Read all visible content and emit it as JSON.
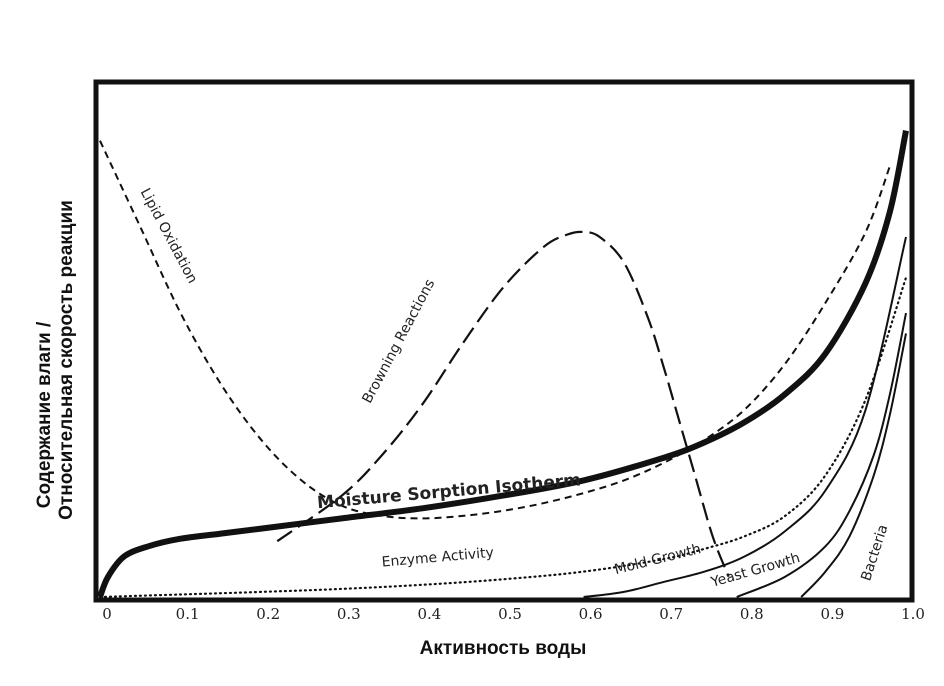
{
  "chart_data": {
    "type": "line",
    "xlabel": "Активность воды",
    "ylabel_lines": [
      "Содержание влаги /",
      "Относительная скорость реакции"
    ],
    "xlim": [
      0,
      1.0
    ],
    "ylim": [
      0,
      1.0
    ],
    "x_ticks": [
      0,
      0.1,
      0.2,
      0.3,
      0.4,
      0.5,
      0.6,
      0.7,
      0.8,
      0.9,
      1.0
    ],
    "x_tick_labels": [
      "0",
      "0.1",
      "0.2",
      "0.3",
      "0.4",
      "0.5",
      "0.6",
      "0.7",
      "0.8",
      "0.9",
      "1.0"
    ],
    "y_ticks_labeled": false,
    "grid": false,
    "legend": "none (curves labeled inline)",
    "series": [
      {
        "name": "Moisture Sorption Isotherm",
        "style": "solid-thick",
        "x": [
          0,
          0.01,
          0.03,
          0.06,
          0.1,
          0.15,
          0.2,
          0.3,
          0.4,
          0.5,
          0.6,
          0.7,
          0.75,
          0.8,
          0.85,
          0.9,
          0.95,
          0.98,
          1.0
        ],
        "y": [
          0,
          0.04,
          0.08,
          0.1,
          0.115,
          0.125,
          0.135,
          0.155,
          0.175,
          0.2,
          0.23,
          0.275,
          0.305,
          0.345,
          0.4,
          0.48,
          0.62,
          0.76,
          0.92
        ]
      },
      {
        "name": "Lipid Oxidation",
        "style": "short-dash",
        "x": [
          0,
          0.05,
          0.1,
          0.15,
          0.2,
          0.25,
          0.3,
          0.35,
          0.4,
          0.45,
          0.5,
          0.55,
          0.6,
          0.65,
          0.7,
          0.75,
          0.8,
          0.85,
          0.9,
          0.95,
          0.98
        ],
        "y": [
          0.9,
          0.73,
          0.56,
          0.42,
          0.31,
          0.23,
          0.18,
          0.16,
          0.155,
          0.16,
          0.17,
          0.185,
          0.205,
          0.23,
          0.265,
          0.31,
          0.37,
          0.46,
          0.58,
          0.72,
          0.85
        ]
      },
      {
        "name": "Browning Reactions",
        "style": "long-dash",
        "x": [
          0.22,
          0.3,
          0.35,
          0.4,
          0.45,
          0.5,
          0.55,
          0.58,
          0.6,
          0.62,
          0.65,
          0.68,
          0.7,
          0.72,
          0.74,
          0.76,
          0.78
        ],
        "y": [
          0.11,
          0.2,
          0.28,
          0.38,
          0.5,
          0.61,
          0.69,
          0.715,
          0.72,
          0.71,
          0.66,
          0.55,
          0.45,
          0.34,
          0.23,
          0.12,
          0.04
        ]
      },
      {
        "name": "Enzyme Activity",
        "style": "dotted",
        "x": [
          0,
          0.1,
          0.2,
          0.3,
          0.4,
          0.5,
          0.6,
          0.7,
          0.75,
          0.8,
          0.85,
          0.9,
          0.95,
          1.0
        ],
        "y": [
          0,
          0.005,
          0.01,
          0.016,
          0.024,
          0.035,
          0.05,
          0.075,
          0.095,
          0.12,
          0.16,
          0.24,
          0.39,
          0.63
        ]
      },
      {
        "name": "Mold Growth",
        "style": "solid-thin",
        "x": [
          0.6,
          0.65,
          0.7,
          0.75,
          0.8,
          0.85,
          0.9,
          0.95,
          1.0
        ],
        "y": [
          0,
          0.01,
          0.03,
          0.05,
          0.08,
          0.13,
          0.21,
          0.37,
          0.71
        ]
      },
      {
        "name": "Yeast Growth",
        "style": "solid-thin",
        "x": [
          0.79,
          0.85,
          0.9,
          0.93,
          0.96,
          0.98,
          1.0
        ],
        "y": [
          0,
          0.04,
          0.1,
          0.17,
          0.28,
          0.4,
          0.56
        ]
      },
      {
        "name": "Bacteria",
        "style": "solid-thin",
        "x": [
          0.87,
          0.9,
          0.93,
          0.96,
          0.98,
          1.0
        ],
        "y": [
          0,
          0.05,
          0.12,
          0.24,
          0.36,
          0.52
        ]
      }
    ]
  }
}
